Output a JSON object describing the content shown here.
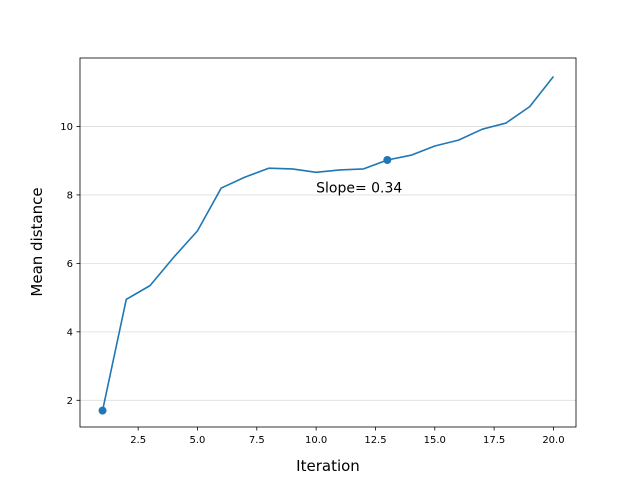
{
  "chart_data": {
    "type": "line",
    "xlabel": "Iteration",
    "ylabel": "Mean distance",
    "xlim": [
      0.05,
      20.95
    ],
    "ylim": [
      1.22,
      12.0
    ],
    "xticks": [
      2.5,
      5.0,
      7.5,
      10.0,
      12.5,
      15.0,
      17.5,
      20.0
    ],
    "xtick_labels": [
      "2.5",
      "5.0",
      "7.5",
      "10.0",
      "12.5",
      "15.0",
      "17.5",
      "20.0"
    ],
    "yticks": [
      2,
      4,
      6,
      8,
      10
    ],
    "ytick_labels": [
      "2",
      "4",
      "6",
      "8",
      "10"
    ],
    "grid": "horizontal",
    "series": [
      {
        "color": "#1f77b4",
        "x": [
          1,
          2,
          3,
          4,
          5,
          6,
          7,
          8,
          9,
          10,
          11,
          12,
          13,
          14,
          15,
          16,
          17,
          18,
          19,
          20
        ],
        "y": [
          1.7,
          4.95,
          5.35,
          6.18,
          6.95,
          8.2,
          8.52,
          8.78,
          8.76,
          8.66,
          8.73,
          8.76,
          9.02,
          9.16,
          9.43,
          9.6,
          9.92,
          10.1,
          10.58,
          11.46
        ]
      }
    ],
    "markers": [
      {
        "x": 1,
        "y": 1.7
      },
      {
        "x": 13,
        "y": 9.02
      }
    ],
    "annotations": [
      {
        "text": "Slope= 0.34",
        "x": 10.0,
        "y": 8.07
      }
    ]
  }
}
